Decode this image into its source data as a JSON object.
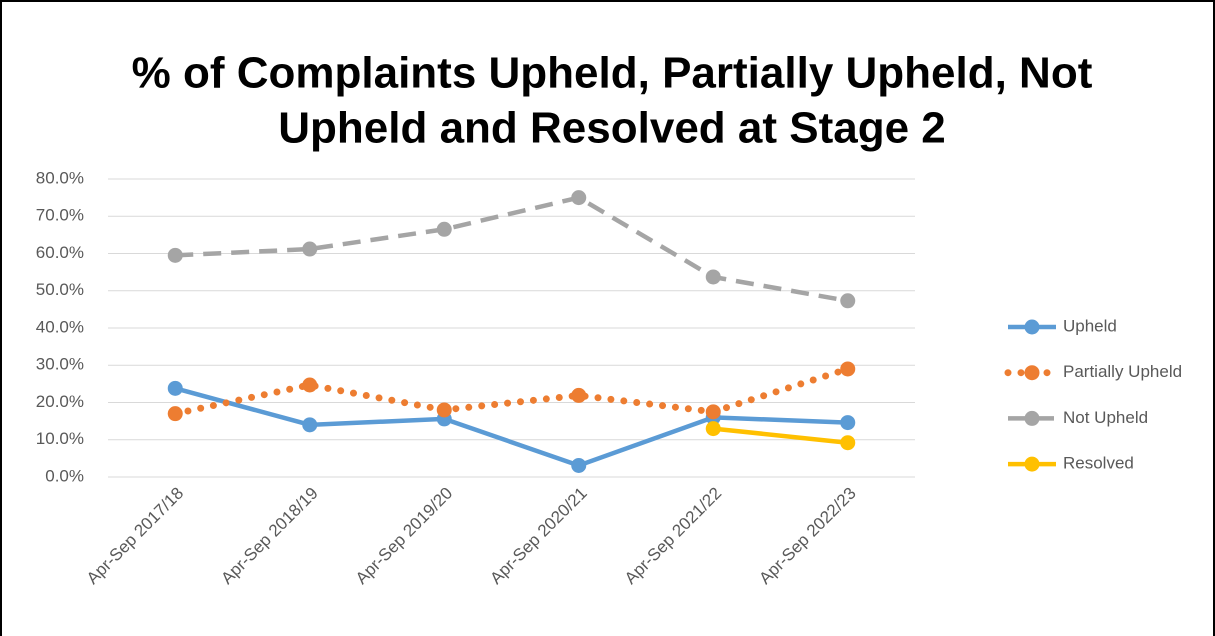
{
  "chart_data": {
    "type": "line",
    "title": [
      "% of Complaints Upheld, Partially Upheld, Not",
      "Upheld and Resolved at Stage 2"
    ],
    "categories": [
      "Apr-Sep 2017/18",
      "Apr-Sep 2018/19",
      "Apr-Sep 2019/20",
      "Apr-Sep 2020/21",
      "Apr-Sep 2021/22",
      "Apr-Sep 2022/23"
    ],
    "series": [
      {
        "name": "Upheld",
        "color": "#5b9bd5",
        "line_style": "solid",
        "values": [
          23.8,
          14.0,
          15.6,
          3.1,
          16.0,
          14.6
        ]
      },
      {
        "name": "Partially Upheld",
        "color": "#ed7d31",
        "line_style": "dotted",
        "values": [
          17.0,
          24.7,
          18.0,
          21.9,
          17.5,
          29.0
        ]
      },
      {
        "name": "Not Upheld",
        "color": "#a5a5a5",
        "line_style": "dashed",
        "values": [
          59.5,
          61.2,
          66.5,
          75.0,
          53.7,
          47.3
        ]
      },
      {
        "name": "Resolved",
        "color": "#ffc000",
        "line_style": "solid",
        "values": [
          null,
          null,
          null,
          null,
          13.0,
          9.2
        ]
      }
    ],
    "ylim": [
      0,
      80
    ],
    "yticks": [
      {
        "value": 0,
        "label": "0.0%"
      },
      {
        "value": 10,
        "label": "10.0%"
      },
      {
        "value": 20,
        "label": "20.0%"
      },
      {
        "value": 30,
        "label": "30.0%"
      },
      {
        "value": 40,
        "label": "40.0%"
      },
      {
        "value": 50,
        "label": "50.0%"
      },
      {
        "value": 60,
        "label": "60.0%"
      },
      {
        "value": 70,
        "label": "70.0%"
      },
      {
        "value": 80,
        "label": "80.0%"
      }
    ],
    "grid": true,
    "legend": "right"
  }
}
